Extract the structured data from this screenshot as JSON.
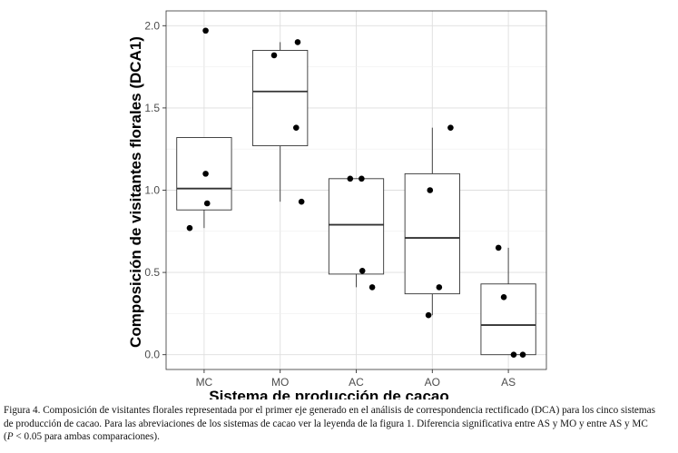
{
  "chart_data": {
    "type": "box",
    "xlabel": "Sistema de producción de cacao",
    "ylabel": "Composición de visitantes florales (DCA1)",
    "categories": [
      "MC",
      "MO",
      "AC",
      "AO",
      "AS"
    ],
    "ylim": [
      -0.09,
      2.09
    ],
    "yticks": [
      0.0,
      0.5,
      1.0,
      1.5,
      2.0
    ],
    "ytick_labels": [
      "0.0",
      "0.5",
      "1.0",
      "1.5",
      "2.0"
    ],
    "grid": true,
    "boxes": [
      {
        "category": "MC",
        "whisker_low": 0.77,
        "q1": 0.88,
        "median": 1.01,
        "q3": 1.32,
        "whisker_high": 1.32
      },
      {
        "category": "MO",
        "whisker_low": 0.93,
        "q1": 1.27,
        "median": 1.6,
        "q3": 1.85,
        "whisker_high": 1.9
      },
      {
        "category": "AC",
        "whisker_low": 0.41,
        "q1": 0.49,
        "median": 0.79,
        "q3": 1.07,
        "whisker_high": 1.07
      },
      {
        "category": "AO",
        "whisker_low": 0.24,
        "q1": 0.37,
        "median": 0.71,
        "q3": 1.1,
        "whisker_high": 1.38
      },
      {
        "category": "AS",
        "whisker_low": 0.0,
        "q1": 0.0,
        "median": 0.18,
        "q3": 0.43,
        "whisker_high": 0.65
      }
    ],
    "points": [
      {
        "category": "MC",
        "jitter": 0.02,
        "y": 1.97
      },
      {
        "category": "MC",
        "jitter": 0.02,
        "y": 1.1
      },
      {
        "category": "MC",
        "jitter": 0.04,
        "y": 0.92
      },
      {
        "category": "MC",
        "jitter": -0.19,
        "y": 0.77
      },
      {
        "category": "MO",
        "jitter": -0.08,
        "y": 1.82
      },
      {
        "category": "MO",
        "jitter": 0.23,
        "y": 1.9
      },
      {
        "category": "MO",
        "jitter": 0.21,
        "y": 1.38
      },
      {
        "category": "MO",
        "jitter": 0.28,
        "y": 0.93
      },
      {
        "category": "AC",
        "jitter": -0.08,
        "y": 1.07
      },
      {
        "category": "AC",
        "jitter": 0.07,
        "y": 1.07
      },
      {
        "category": "AC",
        "jitter": 0.08,
        "y": 0.51
      },
      {
        "category": "AC",
        "jitter": 0.21,
        "y": 0.41
      },
      {
        "category": "AO",
        "jitter": -0.03,
        "y": 1.0
      },
      {
        "category": "AO",
        "jitter": 0.24,
        "y": 1.38
      },
      {
        "category": "AO",
        "jitter": 0.09,
        "y": 0.41
      },
      {
        "category": "AO",
        "jitter": -0.05,
        "y": 0.24
      },
      {
        "category": "AS",
        "jitter": -0.13,
        "y": 0.65
      },
      {
        "category": "AS",
        "jitter": -0.06,
        "y": 0.35
      },
      {
        "category": "AS",
        "jitter": 0.07,
        "y": 0.0
      },
      {
        "category": "AS",
        "jitter": 0.19,
        "y": 0.0
      }
    ]
  },
  "caption": {
    "line1": "Figura 4. Composición de visitantes florales representada por el primer eje generado en el análisis de correspondencia rectificado (DCA) para los cinco sistemas",
    "line2": "de producción de cacao. Para las abreviaciones de los sistemas de cacao ver la leyenda de la figura 1. Diferencia significativa entre AS y MO y entre AS y MC",
    "line3_p": "P",
    "line3_rest": " < 0.05 para ambas comparaciones)."
  }
}
